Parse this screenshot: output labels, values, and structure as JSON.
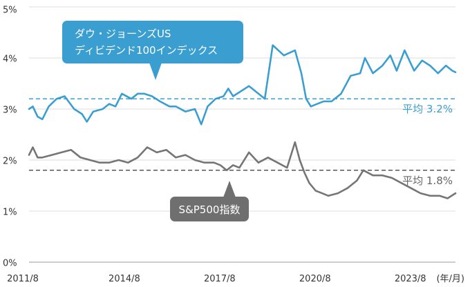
{
  "chart_data": {
    "type": "line",
    "ylim": [
      0,
      5
    ],
    "y_ticks": [
      "0%",
      "1%",
      "2%",
      "3%",
      "4%",
      "5%"
    ],
    "x_ticks": [
      "2011/8",
      "2014/8",
      "2017/8",
      "2020/8",
      "2023/8"
    ],
    "x_unit_label": "(年/月)",
    "xlim": [
      2011.58,
      2025.0
    ],
    "grid": "horizontal",
    "series": [
      {
        "name": "ダウ・ジョーンズUS ディビデンド100インデックス",
        "color": "#3a9fd0",
        "average": 3.2,
        "average_label": "平均 3.2%",
        "x": [
          2011.58,
          2011.7,
          2011.85,
          2012.0,
          2012.2,
          2012.45,
          2012.7,
          2013.0,
          2013.25,
          2013.4,
          2013.6,
          2013.9,
          2014.1,
          2014.3,
          2014.5,
          2014.8,
          2015.0,
          2015.2,
          2015.45,
          2015.7,
          2016.0,
          2016.2,
          2016.5,
          2016.8,
          2017.0,
          2017.2,
          2017.45,
          2017.7,
          2017.85,
          2018.0,
          2018.25,
          2018.5,
          2018.8,
          2019.0,
          2019.25,
          2019.6,
          2019.95,
          2020.15,
          2020.3,
          2020.45,
          2020.65,
          2020.85,
          2021.1,
          2021.4,
          2021.7,
          2022.0,
          2022.15,
          2022.4,
          2022.7,
          2022.95,
          2023.15,
          2023.4,
          2023.7,
          2023.95,
          2024.2,
          2024.45,
          2024.7,
          2024.9,
          2025.0
        ],
        "values": [
          3.0,
          3.05,
          2.85,
          2.8,
          3.05,
          3.2,
          3.25,
          3.0,
          2.9,
          2.75,
          2.95,
          3.0,
          3.1,
          3.05,
          3.3,
          3.2,
          3.3,
          3.3,
          3.25,
          3.15,
          3.05,
          3.05,
          2.95,
          3.0,
          2.7,
          3.05,
          3.2,
          3.25,
          3.4,
          3.25,
          3.35,
          3.45,
          3.3,
          3.2,
          4.25,
          4.05,
          4.15,
          3.7,
          3.2,
          3.05,
          3.1,
          3.15,
          3.15,
          3.3,
          3.65,
          3.7,
          4.0,
          3.7,
          3.85,
          4.05,
          3.75,
          4.15,
          3.75,
          3.95,
          3.85,
          3.7,
          3.85,
          3.75,
          3.72
        ]
      },
      {
        "name": "S&P500指数",
        "color": "#757575",
        "average": 1.8,
        "average_label": "平均 1.8%",
        "x": [
          2011.58,
          2011.7,
          2011.85,
          2012.0,
          2012.3,
          2012.6,
          2012.9,
          2013.2,
          2013.5,
          2013.8,
          2014.1,
          2014.4,
          2014.7,
          2015.0,
          2015.3,
          2015.6,
          2015.9,
          2016.2,
          2016.5,
          2016.8,
          2017.1,
          2017.4,
          2017.6,
          2017.8,
          2018.0,
          2018.2,
          2018.5,
          2018.8,
          2019.1,
          2019.4,
          2019.7,
          2019.95,
          2020.1,
          2020.25,
          2020.4,
          2020.6,
          2020.8,
          2021.0,
          2021.3,
          2021.6,
          2021.9,
          2022.1,
          2022.4,
          2022.7,
          2023.0,
          2023.3,
          2023.6,
          2023.9,
          2024.2,
          2024.5,
          2024.75,
          2025.0
        ],
        "values": [
          2.1,
          2.25,
          2.05,
          2.05,
          2.1,
          2.15,
          2.2,
          2.05,
          2.0,
          1.95,
          1.95,
          2.0,
          1.95,
          2.05,
          2.25,
          2.15,
          2.2,
          2.05,
          2.1,
          2.0,
          1.95,
          1.95,
          1.9,
          1.8,
          1.9,
          1.85,
          2.15,
          1.95,
          2.05,
          1.95,
          1.85,
          2.35,
          2.0,
          1.75,
          1.55,
          1.4,
          1.35,
          1.3,
          1.35,
          1.45,
          1.6,
          1.8,
          1.7,
          1.7,
          1.65,
          1.55,
          1.45,
          1.35,
          1.3,
          1.3,
          1.25,
          1.35
        ]
      }
    ],
    "callouts": [
      {
        "text_lines": [
          "ダウ・ジョーンズUS",
          "ディビデンド100インデックス"
        ],
        "color": "#3a9fd0"
      },
      {
        "text_lines": [
          "S&P500指数"
        ],
        "color": "#6f6f6f"
      }
    ]
  }
}
